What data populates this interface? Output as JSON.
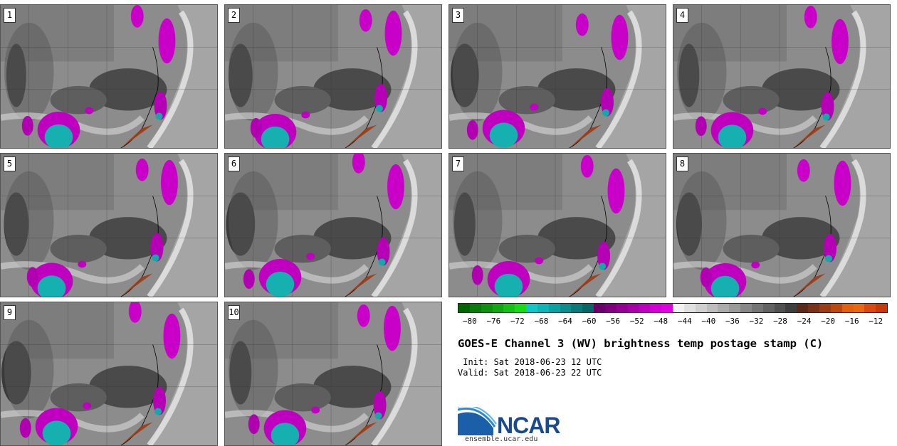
{
  "panels": [
    {
      "label": "1"
    },
    {
      "label": "2"
    },
    {
      "label": "3"
    },
    {
      "label": "4"
    },
    {
      "label": "5"
    },
    {
      "label": "6"
    },
    {
      "label": "7"
    },
    {
      "label": "8"
    },
    {
      "label": "9"
    },
    {
      "label": "10"
    }
  ],
  "colorbar": {
    "colors": [
      "#006400",
      "#0a7a0a",
      "#0f8f0f",
      "#13a613",
      "#16c016",
      "#1ad81a",
      "#12c6c6",
      "#0fb4b4",
      "#0da0a0",
      "#0b8d8d",
      "#097a7a",
      "#076666",
      "#6a006a",
      "#7f007f",
      "#930093",
      "#a800a8",
      "#bd00bd",
      "#d200d2",
      "#e100e1",
      "#f2f2f2",
      "#e0e0e0",
      "#cfcfcf",
      "#bdbdbd",
      "#ababab",
      "#999999",
      "#878787",
      "#757575",
      "#636363",
      "#515151",
      "#3f3f3f",
      "#5a2a1a",
      "#7a3218",
      "#9a3c14",
      "#bc4a10",
      "#e0620c",
      "#e86a10",
      "#d84a10",
      "#c43a08"
    ],
    "ticks": [
      "−80",
      "−76",
      "−72",
      "−68",
      "−64",
      "−60",
      "−56",
      "−52",
      "−48",
      "−44",
      "−40",
      "−36",
      "−32",
      "−28",
      "−24",
      "−20",
      "−16",
      "−12"
    ],
    "range": [
      -82,
      -10
    ]
  },
  "title": "GOES-E Channel 3 (WV) brightness temp postage stamp (C)",
  "init_line": " Init: Sat 2018-06-23 12 UTC",
  "valid_line": "Valid: Sat 2018-06-23 22 UTC",
  "logo_text": "NCAR",
  "logo_url": "ensemble.ucar.edu"
}
